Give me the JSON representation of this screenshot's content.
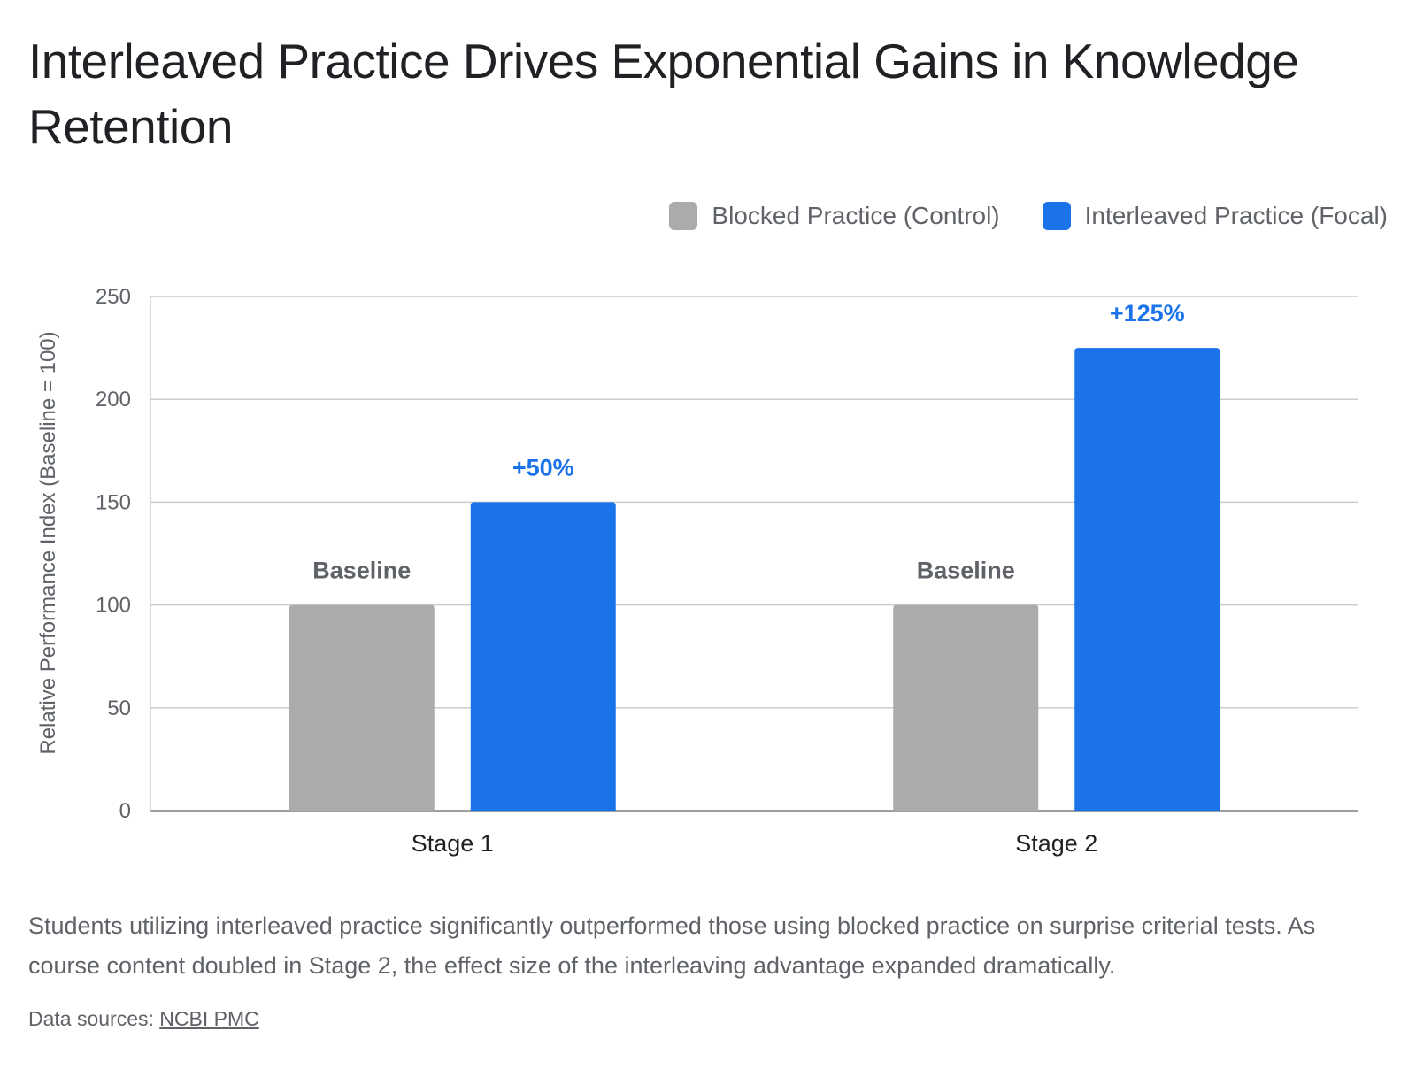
{
  "title": "Interleaved Practice Drives Exponential Gains in Knowledge Retention",
  "caption": "Students utilizing interleaved practice significantly outperformed those using blocked practice on surprise criterial tests. As course content doubled in Stage 2, the effect size of the interleaving advantage expanded dramatically.",
  "source": {
    "prefix": "Data sources: ",
    "link_text": "NCBI PMC"
  },
  "colors": {
    "control": "#ababab",
    "focal": "#1a73e8",
    "grid": "#cccccc",
    "label_control": "#5f6368",
    "label_focal": "#1a73e8"
  },
  "chart_data": {
    "type": "bar",
    "categories": [
      "Stage 1",
      "Stage 2"
    ],
    "series": [
      {
        "name": "Blocked Practice (Control)",
        "values": [
          100,
          100
        ],
        "labels": [
          "Baseline",
          "Baseline"
        ]
      },
      {
        "name": "Interleaved Practice (Focal)",
        "values": [
          150,
          225
        ],
        "labels": [
          "+50%",
          "+125%"
        ]
      }
    ],
    "ylabel": "Relative Performance Index (Baseline = 100)",
    "xlabel": "",
    "ylim": [
      0,
      250
    ],
    "yticks": [
      0,
      50,
      100,
      150,
      200,
      250
    ],
    "grid": true,
    "legend_position": "top-right"
  }
}
